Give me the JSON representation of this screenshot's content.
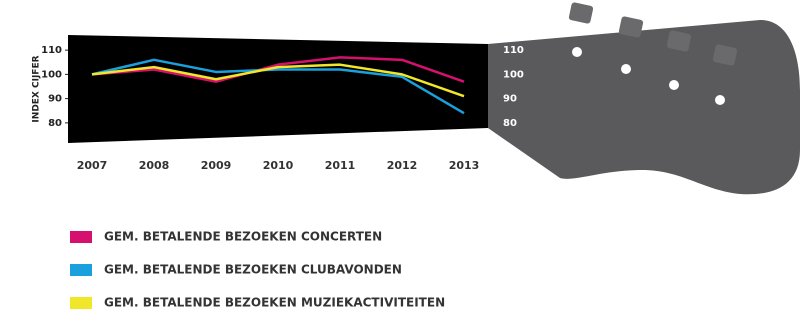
{
  "chart_data": {
    "type": "line",
    "y_label": "INDEX CIJFER",
    "categories": [
      "2007",
      "2008",
      "2009",
      "2010",
      "2011",
      "2012",
      "2013"
    ],
    "series": [
      {
        "name": "GEM. BETALENDE BEZOEKEN CONCERTEN",
        "color": "#d6106e",
        "values": [
          100,
          102,
          97,
          104,
          107,
          106,
          97
        ]
      },
      {
        "name": "GEM. BETALENDE BEZOEKEN CLUBAVONDEN",
        "color": "#1aa0dc",
        "values": [
          100,
          106,
          101,
          102,
          102,
          99,
          84
        ]
      },
      {
        "name": "GEM. BETALENDE BEZOEKEN MUZIEKACTIVITEITEN",
        "color": "#f0e62a",
        "values": [
          100,
          103,
          98,
          103,
          104,
          100,
          91
        ]
      }
    ],
    "ylim": [
      75,
      115
    ],
    "yticks": [
      80,
      90,
      100,
      110
    ],
    "grid": false,
    "legend": "bottom-left"
  }
}
